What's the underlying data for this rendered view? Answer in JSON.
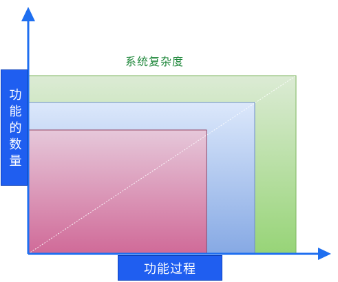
{
  "labels": {
    "system_complexity": "系统复杂度",
    "y_axis": "功能的数量",
    "x_axis": "功能过程"
  },
  "regions": [
    {
      "name": "outer-region",
      "fill_top": "#dcebd5",
      "fill_bottom": "#97d477",
      "border": "#7db65f"
    },
    {
      "name": "middle-region",
      "fill_top": "#dce8fb",
      "fill_bottom": "#86a9e4",
      "border": "#6f8fc9"
    },
    {
      "name": "inner-region",
      "fill_top": "#e6c8da",
      "fill_bottom": "#d06a98",
      "border": "#94405f"
    }
  ],
  "colors": {
    "axis": "#1f6ff0",
    "label_box": "#1f5ef0",
    "label_box_border": "#0b3fba",
    "label_text": "#ffffff",
    "complexity_text": "#20883c",
    "diagonal": "#ffffff"
  }
}
